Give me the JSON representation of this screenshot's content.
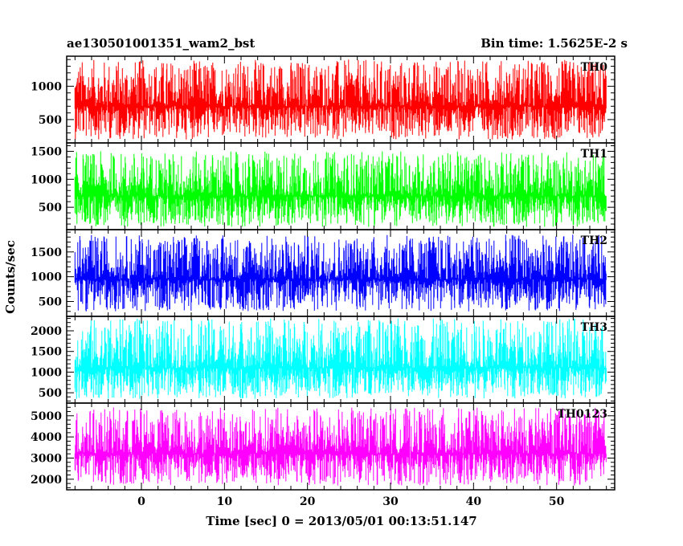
{
  "header": {
    "left_title": "ae130501001351_wam2_bst",
    "right_title": "Bin time: 1.5625E-2 s"
  },
  "chart_data": {
    "type": "line",
    "xlabel": "Time [sec] 0 = 2013/05/01 00:13:51.147",
    "ylabel": "Counts/sec",
    "xlim": [
      -9,
      57
    ],
    "x_range_of_data": [
      -8,
      56
    ],
    "xticks": [
      0,
      10,
      20,
      30,
      40,
      50
    ],
    "bin_time_s": 0.015625,
    "grid": false,
    "panels": [
      {
        "name": "TH0",
        "color": "#ff0000",
        "ylim": [
          150,
          1450
        ],
        "yticks": [
          500,
          1000
        ],
        "baseline": 200,
        "mean": 700,
        "peak": 1400
      },
      {
        "name": "TH1",
        "color": "#00ff00",
        "ylim": [
          100,
          1650
        ],
        "yticks": [
          500,
          1000,
          1500
        ],
        "baseline": 150,
        "mean": 700,
        "peak": 1500
      },
      {
        "name": "TH2",
        "color": "#0000ff",
        "ylim": [
          200,
          1950
        ],
        "yticks": [
          500,
          1000,
          1500
        ],
        "baseline": 300,
        "mean": 950,
        "peak": 1850
      },
      {
        "name": "TH3",
        "color": "#00ffff",
        "ylim": [
          250,
          2350
        ],
        "yticks": [
          500,
          1000,
          1500,
          2000
        ],
        "baseline": 350,
        "mean": 1100,
        "peak": 2300
      },
      {
        "name": "TH0123",
        "color": "#ff00ff",
        "ylim": [
          1500,
          5600
        ],
        "yticks": [
          2000,
          3000,
          4000,
          5000
        ],
        "baseline": 1700,
        "mean": 3200,
        "peak": 5400
      }
    ]
  }
}
